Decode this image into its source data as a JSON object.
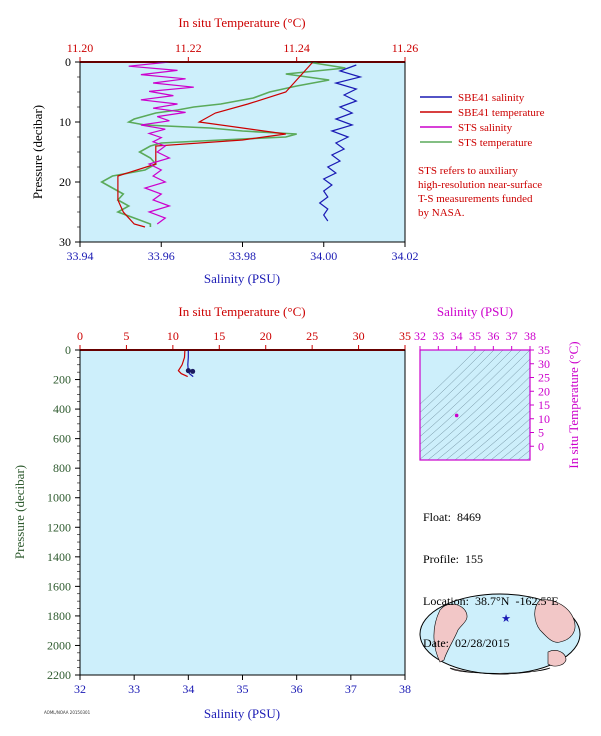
{
  "colors": {
    "plot_bg": "#cdeffb",
    "red": "#cc0000",
    "blue": "#1a1ab4",
    "magenta": "#cc00cc",
    "green": "#5aaa5a",
    "pink": "#ff8888",
    "dark_green": "#2e5a2e"
  },
  "legend": {
    "items": [
      {
        "label": "SBE41 salinity",
        "color": "#1a1ab4"
      },
      {
        "label": "SBE41 temperature",
        "color": "#cc0000"
      },
      {
        "label": "STS salinity",
        "color": "#cc00cc"
      },
      {
        "label": "STS temperature",
        "color": "#5aaa5a"
      }
    ],
    "note": [
      "STS refers to auxiliary",
      "high-resolution near-surface",
      "T-S measurements funded",
      "by NASA."
    ]
  },
  "info": {
    "float": "Float:  8469",
    "profile": "Profile:  155",
    "location": "Location:  38.7°N  -162.5°E",
    "date": "Date:  02/28/2015"
  },
  "footer_tag": "AOML/NOAA 20150301",
  "chart_data": [
    {
      "id": "top",
      "type": "line",
      "xlabel_top": "In situ Temperature (°C)",
      "xlabel_bottom": "Salinity (PSU)",
      "ylabel": "Pressure (decibar)",
      "temp_ticks": [
        "11.20",
        "11.22",
        "11.24",
        "11.26"
      ],
      "temp_range": [
        11.2,
        11.26
      ],
      "sal_ticks": [
        "33.94",
        "33.96",
        "33.98",
        "34.00",
        "34.02"
      ],
      "sal_range": [
        33.94,
        34.02
      ],
      "pres_ticks": [
        "0",
        "10",
        "20",
        "30"
      ],
      "pres_range": [
        0,
        30
      ],
      "series": [
        {
          "name": "STS temperature",
          "axis": "temp",
          "points": [
            [
              0.0,
              11.242
            ],
            [
              1.0,
              11.249
            ],
            [
              2.0,
              11.238
            ],
            [
              3.0,
              11.246
            ],
            [
              4.0,
              11.24
            ],
            [
              5.0,
              11.235
            ],
            [
              6.0,
              11.232
            ],
            [
              7.0,
              11.226
            ],
            [
              7.5,
              11.221
            ],
            [
              8.0,
              11.218
            ],
            [
              8.5,
              11.214
            ],
            [
              9.0,
              11.212
            ],
            [
              9.5,
              11.21
            ],
            [
              10.0,
              11.209
            ],
            [
              10.5,
              11.212
            ],
            [
              11.0,
              11.224
            ],
            [
              11.5,
              11.23
            ],
            [
              12.0,
              11.24
            ],
            [
              12.5,
              11.238
            ],
            [
              13.0,
              11.226
            ],
            [
              13.5,
              11.215
            ],
            [
              14.0,
              11.213
            ],
            [
              15.0,
              11.211
            ],
            [
              16.0,
              11.213
            ],
            [
              17.0,
              11.214
            ],
            [
              18.0,
              11.212
            ],
            [
              19.0,
              11.206
            ],
            [
              20.0,
              11.204
            ],
            [
              21.0,
              11.206
            ],
            [
              22.0,
              11.208
            ],
            [
              23.0,
              11.207
            ],
            [
              24.0,
              11.209
            ],
            [
              25.0,
              11.207
            ],
            [
              26.0,
              11.21
            ],
            [
              27.0,
              11.213
            ],
            [
              27.5,
              11.213
            ]
          ]
        },
        {
          "name": "SBE41 temperature",
          "axis": "temp",
          "points": [
            [
              0.0,
              11.243
            ],
            [
              5.0,
              11.238
            ],
            [
              7.0,
              11.231
            ],
            [
              8.5,
              11.225
            ],
            [
              10.0,
              11.222
            ],
            [
              11.0,
              11.23
            ],
            [
              12.0,
              11.238
            ],
            [
              13.0,
              11.23
            ],
            [
              14.0,
              11.214
            ],
            [
              17.0,
              11.214
            ],
            [
              19.0,
              11.207
            ],
            [
              21.0,
              11.207
            ],
            [
              23.0,
              11.207
            ],
            [
              25.0,
              11.208
            ],
            [
              27.0,
              11.21
            ],
            [
              27.5,
              11.212
            ]
          ]
        },
        {
          "name": "STS salinity",
          "axis": "sal",
          "points": [
            [
              0.0,
              33.962
            ],
            [
              0.7,
              33.952
            ],
            [
              1.4,
              33.964
            ],
            [
              2.1,
              33.955
            ],
            [
              2.8,
              33.966
            ],
            [
              3.5,
              33.958
            ],
            [
              4.2,
              33.968
            ],
            [
              4.9,
              33.957
            ],
            [
              5.6,
              33.963
            ],
            [
              6.3,
              33.955
            ],
            [
              7.0,
              33.964
            ],
            [
              7.7,
              33.958
            ],
            [
              8.4,
              33.966
            ],
            [
              9.1,
              33.959
            ],
            [
              9.8,
              33.962
            ],
            [
              10.5,
              33.955
            ],
            [
              11.2,
              33.961
            ],
            [
              11.9,
              33.957
            ],
            [
              12.6,
              33.96
            ],
            [
              13.3,
              33.958
            ],
            [
              14.0,
              33.961
            ],
            [
              15.0,
              33.959
            ],
            [
              16.0,
              33.962
            ],
            [
              17.0,
              33.957
            ],
            [
              18.0,
              33.96
            ],
            [
              19.0,
              33.958
            ],
            [
              20.0,
              33.961
            ],
            [
              21.0,
              33.956
            ],
            [
              22.0,
              33.96
            ],
            [
              23.0,
              33.958
            ],
            [
              24.0,
              33.962
            ],
            [
              25.0,
              33.957
            ],
            [
              26.0,
              33.961
            ],
            [
              27.0,
              33.959
            ]
          ]
        },
        {
          "name": "SBE41 salinity",
          "axis": "sal",
          "points": [
            [
              0.5,
              34.008
            ],
            [
              1.5,
              34.004
            ],
            [
              2.5,
              34.009
            ],
            [
              3.5,
              34.003
            ],
            [
              4.5,
              34.008
            ],
            [
              5.5,
              34.005
            ],
            [
              6.5,
              34.008
            ],
            [
              7.5,
              34.004
            ],
            [
              8.5,
              34.007
            ],
            [
              9.5,
              34.003
            ],
            [
              10.5,
              34.007
            ],
            [
              11.5,
              34.002
            ],
            [
              12.5,
              34.006
            ],
            [
              13.5,
              34.003
            ],
            [
              14.5,
              34.005
            ],
            [
              15.5,
              34.002
            ],
            [
              16.5,
              34.004
            ],
            [
              17.5,
              34.001
            ],
            [
              18.5,
              34.003
            ],
            [
              19.5,
              34.0
            ],
            [
              20.5,
              34.002
            ],
            [
              21.5,
              34.0
            ],
            [
              22.5,
              34.001
            ],
            [
              23.5,
              33.999
            ],
            [
              24.5,
              34.001
            ],
            [
              25.5,
              34.0
            ],
            [
              26.5,
              34.001
            ]
          ]
        }
      ]
    },
    {
      "id": "bottom",
      "type": "line",
      "xlabel_top": "In situ Temperature (°C)",
      "xlabel_bottom": "Salinity (PSU)",
      "ylabel": "Pressure (decibar)",
      "temp_ticks": [
        "0",
        "5",
        "10",
        "15",
        "20",
        "25",
        "30",
        "35"
      ],
      "temp_range": [
        0,
        35
      ],
      "sal_ticks": [
        "32",
        "33",
        "34",
        "35",
        "36",
        "37",
        "38"
      ],
      "sal_range": [
        32,
        38
      ],
      "pres_ticks": [
        "0",
        "200",
        "400",
        "600",
        "800",
        "1000",
        "1200",
        "1400",
        "1600",
        "1800",
        "2000",
        "2200"
      ],
      "pres_range": [
        0,
        2200
      ],
      "series": [
        {
          "name": "SBE41 temperature",
          "axis": "temp",
          "points": [
            [
              0,
              11.3
            ],
            [
              50,
              11.25
            ],
            [
              100,
              11.0
            ],
            [
              140,
              10.6
            ],
            [
              160,
              10.9
            ],
            [
              180,
              11.6
            ]
          ]
        },
        {
          "name": "SBE41 salinity",
          "axis": "sal",
          "points": [
            [
              0,
              34.0
            ],
            [
              50,
              34.0
            ],
            [
              100,
              33.99
            ],
            [
              140,
              34.0
            ],
            [
              160,
              34.02
            ],
            [
              180,
              34.09
            ]
          ]
        }
      ],
      "markers": [
        [
          140,
          34.0
        ],
        [
          145,
          34.08
        ]
      ]
    },
    {
      "id": "ts",
      "type": "scatter",
      "xlabel_top": "Salinity (PSU)",
      "ylabel_right": "In situ Temperature (°C)",
      "sal_ticks": [
        "32",
        "33",
        "34",
        "35",
        "36",
        "37",
        "38"
      ],
      "sal_range": [
        32,
        38
      ],
      "temp_ticks": [
        "0",
        "5",
        "10",
        "15",
        "20",
        "25",
        "30",
        "35"
      ],
      "temp_range": [
        -5,
        35
      ],
      "points": [
        [
          34.0,
          11.2
        ]
      ]
    }
  ]
}
